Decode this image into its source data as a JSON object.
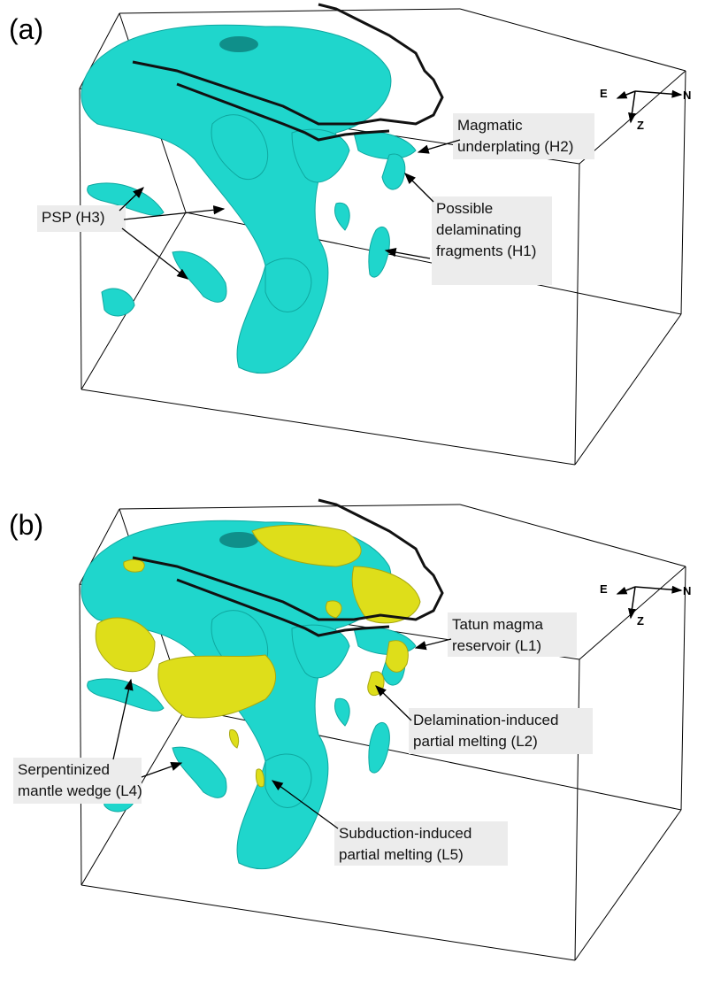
{
  "panels": [
    {
      "label": "(a)",
      "compass": {
        "east": "E",
        "north": "N",
        "depth": "Z"
      },
      "annotations": [
        {
          "lines": [
            "Magmatic",
            "underplating (H2)"
          ]
        },
        {
          "lines": [
            "PSP (H3)"
          ]
        },
        {
          "lines": [
            "Possible",
            "delaminating",
            "fragments (H1)"
          ]
        }
      ]
    },
    {
      "label": "(b)",
      "compass": {
        "east": "E",
        "north": "N",
        "depth": "Z"
      },
      "annotations": [
        {
          "lines": [
            "Tatun magma",
            "reservoir (L1)"
          ]
        },
        {
          "lines": [
            "Delamination-induced",
            "partial melting (L2)"
          ]
        },
        {
          "lines": [
            "Serpentinized",
            "mantle wedge (L4)"
          ]
        },
        {
          "lines": [
            "Subduction-induced",
            "partial melting (L5)"
          ]
        }
      ]
    }
  ]
}
